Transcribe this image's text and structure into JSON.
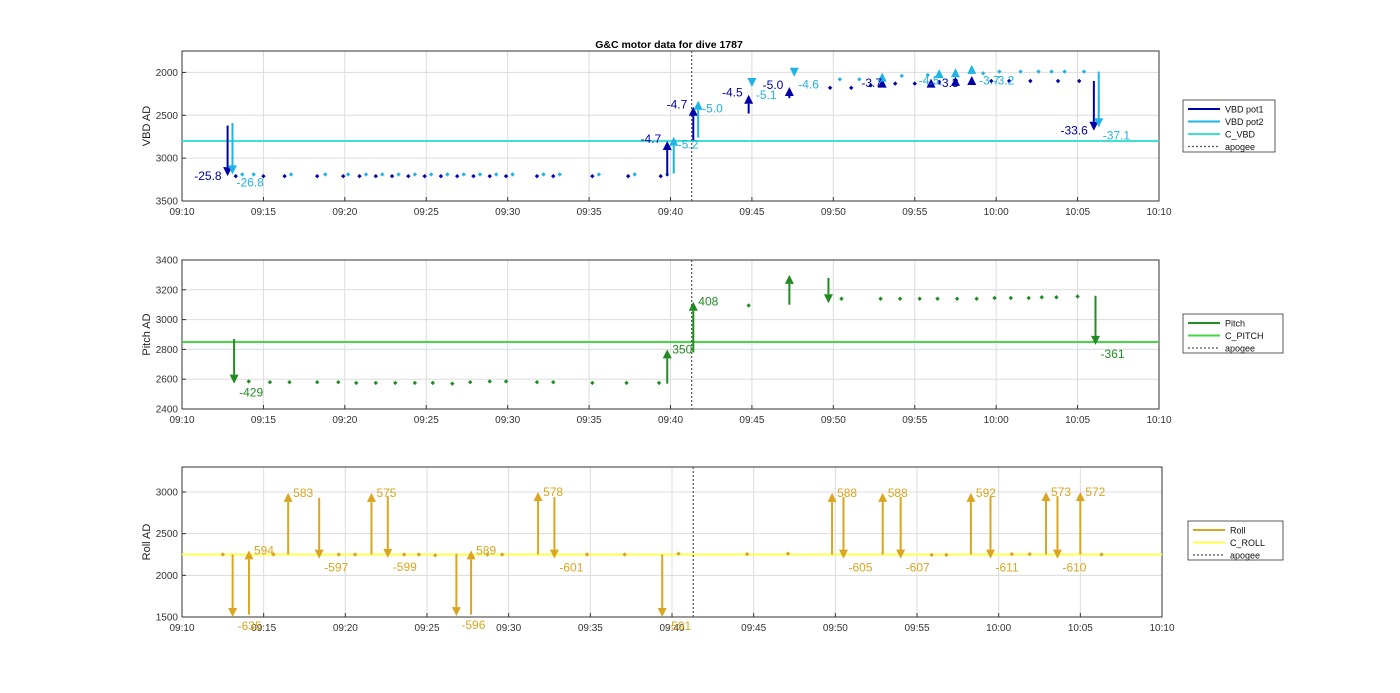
{
  "figure": {
    "title": "G&C motor data for dive 1787"
  },
  "colors": {
    "vbd1": "#0000a8",
    "vbd2": "#1fb4e6",
    "c_vbd": "#40e0d0",
    "pitch": "#228b22",
    "c_pitch": "#45d845",
    "roll": "#daa520",
    "c_roll": "#ffff4d",
    "apogee": "#555555",
    "grid": "#dcdcdc"
  },
  "chart_data": [
    {
      "type": "line",
      "panel": "vbd",
      "ylabel": "VBD AD",
      "xlabel": "",
      "x_ticks": [
        "09:10",
        "09:15",
        "09:20",
        "09:25",
        "09:30",
        "09:35",
        "09:40",
        "09:45",
        "09:50",
        "09:55",
        "10:00",
        "10:05",
        "10:10"
      ],
      "y_ticks": [
        "2000",
        "2500",
        "3000",
        "3500"
      ],
      "xlim": [
        "09:10",
        "10:10"
      ],
      "ylim": [
        3500,
        1750
      ],
      "y_reversed": true,
      "grid": true,
      "legend_position": "right",
      "legend": [
        "VBD pot1",
        "VBD pot2",
        "C_VBD",
        "apogee"
      ],
      "apogee_x": "09:41.3",
      "c_value": 2800,
      "pot1_points": [
        {
          "x": "09:13.3",
          "y": 3210
        },
        {
          "x": "09:15.0",
          "y": 3210
        },
        {
          "x": "09:16.3",
          "y": 3210
        },
        {
          "x": "09:18.3",
          "y": 3210
        },
        {
          "x": "09:19.9",
          "y": 3210
        },
        {
          "x": "09:20.9",
          "y": 3210
        },
        {
          "x": "09:21.9",
          "y": 3210
        },
        {
          "x": "09:22.9",
          "y": 3210
        },
        {
          "x": "09:23.9",
          "y": 3210
        },
        {
          "x": "09:24.9",
          "y": 3210
        },
        {
          "x": "09:25.9",
          "y": 3210
        },
        {
          "x": "09:26.9",
          "y": 3210
        },
        {
          "x": "09:27.9",
          "y": 3210
        },
        {
          "x": "09:28.9",
          "y": 3210
        },
        {
          "x": "09:29.9",
          "y": 3210
        },
        {
          "x": "09:31.8",
          "y": 3210
        },
        {
          "x": "09:32.8",
          "y": 3210
        },
        {
          "x": "09:35.2",
          "y": 3210
        },
        {
          "x": "09:37.4",
          "y": 3210
        },
        {
          "x": "09:39.4",
          "y": 3210
        },
        {
          "x": "09:49.8",
          "y": 2180
        },
        {
          "x": "09:51.1",
          "y": 2180
        },
        {
          "x": "09:52.3",
          "y": 2150
        },
        {
          "x": "09:53.8",
          "y": 2130
        },
        {
          "x": "09:55.0",
          "y": 2130
        },
        {
          "x": "09:56.5",
          "y": 2110
        },
        {
          "x": "09:59.7",
          "y": 2100
        },
        {
          "x": "10:00.8",
          "y": 2100
        },
        {
          "x": "10:02.1",
          "y": 2100
        },
        {
          "x": "10:03.8",
          "y": 2100
        },
        {
          "x": "10:05.1",
          "y": 2100
        }
      ],
      "pot2_points": [
        {
          "x": "09:13.7",
          "y": 3190
        },
        {
          "x": "09:14.4",
          "y": 3190
        },
        {
          "x": "09:16.7",
          "y": 3190
        },
        {
          "x": "09:18.8",
          "y": 3190
        },
        {
          "x": "09:20.2",
          "y": 3190
        },
        {
          "x": "09:21.3",
          "y": 3190
        },
        {
          "x": "09:22.3",
          "y": 3190
        },
        {
          "x": "09:23.3",
          "y": 3190
        },
        {
          "x": "09:24.3",
          "y": 3190
        },
        {
          "x": "09:25.3",
          "y": 3190
        },
        {
          "x": "09:26.3",
          "y": 3190
        },
        {
          "x": "09:27.3",
          "y": 3190
        },
        {
          "x": "09:28.3",
          "y": 3190
        },
        {
          "x": "09:29.3",
          "y": 3190
        },
        {
          "x": "09:30.3",
          "y": 3190
        },
        {
          "x": "09:32.2",
          "y": 3190
        },
        {
          "x": "09:33.2",
          "y": 3190
        },
        {
          "x": "09:35.6",
          "y": 3190
        },
        {
          "x": "09:37.8",
          "y": 3190
        },
        {
          "x": "09:39.8",
          "y": 3190
        },
        {
          "x": "09:50.4",
          "y": 2080
        },
        {
          "x": "09:51.6",
          "y": 2080
        },
        {
          "x": "09:54.2",
          "y": 2040
        },
        {
          "x": "09:55.8",
          "y": 2030
        },
        {
          "x": "09:59.2",
          "y": 2010
        },
        {
          "x": "10:00.2",
          "y": 1990
        },
        {
          "x": "10:01.5",
          "y": 1990
        },
        {
          "x": "10:02.6",
          "y": 1990
        },
        {
          "x": "10:03.4",
          "y": 1990
        },
        {
          "x": "10:04.2",
          "y": 1990
        },
        {
          "x": "10:05.4",
          "y": 1990
        }
      ],
      "pot1_triangles": [
        {
          "x": "09:53.0",
          "y": 2130
        },
        {
          "x": "09:56.0",
          "y": 2130
        },
        {
          "x": "09:57.5",
          "y": 2110
        },
        {
          "x": "09:58.5",
          "y": 2100
        }
      ],
      "pot2_triangles": [
        {
          "x": "09:53.0",
          "y": 2060
        },
        {
          "x": "09:56.5",
          "y": 2020
        },
        {
          "x": "09:57.5",
          "y": 2010
        },
        {
          "x": "09:58.5",
          "y": 1970
        }
      ],
      "pot1_moves": [
        {
          "x": "09:12.8",
          "from": 2620,
          "to": 3210,
          "label": "-25.8"
        },
        {
          "x": "09:39.8",
          "from": 3210,
          "to": 2800,
          "label": "-4.7"
        },
        {
          "x": "09:41.4",
          "from": 2790,
          "to": 2400,
          "label": "-4.7"
        },
        {
          "x": "09:44.8",
          "from": 2480,
          "to": 2260,
          "label": "-4.5"
        },
        {
          "x": "09:47.3",
          "from": 2300,
          "to": 2170,
          "label": "-5.0"
        },
        {
          "x": "09:51.6",
          "from": null,
          "to": null,
          "label": "-3.7"
        },
        {
          "x": "09:56.3",
          "from": null,
          "to": null,
          "label": "-3.3"
        },
        {
          "x": "10:06.0",
          "from": 2100,
          "to": 2680,
          "label": "-33.6"
        }
      ],
      "pot2_moves": [
        {
          "x": "09:13.1",
          "from": 2590,
          "to": 3190,
          "label": "-26.8"
        },
        {
          "x": "09:40.2",
          "from": 3180,
          "to": 2750,
          "label": "-5.2"
        },
        {
          "x": "09:41.7",
          "from": 2760,
          "to": 2330,
          "label": "-5.0"
        },
        {
          "x": "09:45.0",
          "from": null,
          "to": 2170,
          "label": "-5.1"
        },
        {
          "x": "09:47.6",
          "from": null,
          "to": 2050,
          "label": "-4.6"
        },
        {
          "x": "09:55.0",
          "from": null,
          "to": null,
          "label": "-4.5"
        },
        {
          "x": "09:58.7",
          "from": null,
          "to": null,
          "label": "-3.7"
        },
        {
          "x": "09:59.6",
          "from": null,
          "to": null,
          "label": "-3.2"
        },
        {
          "x": "10:06.3",
          "from": 1990,
          "to": 2640,
          "label": "-37.1"
        }
      ]
    },
    {
      "type": "line",
      "panel": "pitch",
      "ylabel": "Pitch AD",
      "xlabel": "",
      "x_ticks": [
        "09:10",
        "09:15",
        "09:20",
        "09:25",
        "09:30",
        "09:35",
        "09:40",
        "09:45",
        "09:50",
        "09:55",
        "10:00",
        "10:05",
        "10:10"
      ],
      "y_ticks": [
        "2400",
        "2600",
        "2800",
        "3000",
        "3200",
        "3400"
      ],
      "xlim": [
        "09:10",
        "10:10"
      ],
      "ylim": [
        2400,
        3400
      ],
      "grid": true,
      "legend_position": "right",
      "legend": [
        "Pitch",
        "C_PITCH",
        "apogee"
      ],
      "apogee_x": "09:41.3",
      "c_value": 2850,
      "points": [
        {
          "x": "09:14.1",
          "y": 2585
        },
        {
          "x": "09:15.4",
          "y": 2580
        },
        {
          "x": "09:16.6",
          "y": 2580
        },
        {
          "x": "09:18.3",
          "y": 2580
        },
        {
          "x": "09:19.6",
          "y": 2580
        },
        {
          "x": "09:20.7",
          "y": 2575
        },
        {
          "x": "09:21.9",
          "y": 2575
        },
        {
          "x": "09:23.1",
          "y": 2575
        },
        {
          "x": "09:24.3",
          "y": 2575
        },
        {
          "x": "09:25.4",
          "y": 2575
        },
        {
          "x": "09:26.6",
          "y": 2570
        },
        {
          "x": "09:27.7",
          "y": 2580
        },
        {
          "x": "09:28.9",
          "y": 2585
        },
        {
          "x": "09:29.9",
          "y": 2585
        },
        {
          "x": "09:31.8",
          "y": 2580
        },
        {
          "x": "09:32.8",
          "y": 2580
        },
        {
          "x": "09:35.2",
          "y": 2575
        },
        {
          "x": "09:37.3",
          "y": 2575
        },
        {
          "x": "09:39.3",
          "y": 2575
        },
        {
          "x": "09:44.8",
          "y": 3095
        },
        {
          "x": "09:50.5",
          "y": 3140
        },
        {
          "x": "09:52.9",
          "y": 3140
        },
        {
          "x": "09:54.1",
          "y": 3140
        },
        {
          "x": "09:55.3",
          "y": 3140
        },
        {
          "x": "09:56.4",
          "y": 3140
        },
        {
          "x": "09:57.6",
          "y": 3140
        },
        {
          "x": "09:58.8",
          "y": 3140
        },
        {
          "x": "09:59.9",
          "y": 3145
        },
        {
          "x": "10:00.9",
          "y": 3145
        },
        {
          "x": "10:02.0",
          "y": 3145
        },
        {
          "x": "10:02.8",
          "y": 3150
        },
        {
          "x": "10:03.7",
          "y": 3150
        },
        {
          "x": "10:05.0",
          "y": 3155
        }
      ],
      "moves": [
        {
          "x": "09:13.2",
          "from": 2870,
          "to": 2570,
          "label": "-429"
        },
        {
          "x": "09:39.8",
          "from": 2570,
          "to": 2800,
          "label": "350"
        },
        {
          "x": "09:41.4",
          "from": 2780,
          "to": 3120,
          "label": "408"
        },
        {
          "x": "09:47.3",
          "from": 3100,
          "to": 3300,
          "label": ""
        },
        {
          "x": "09:49.7",
          "from": 3280,
          "to": 3110,
          "label": ""
        },
        {
          "x": "10:06.1",
          "from": 3160,
          "to": 2830,
          "label": "-361"
        }
      ]
    },
    {
      "type": "line",
      "panel": "roll",
      "ylabel": "Roll AD",
      "xlabel": "",
      "x_ticks": [
        "09:10",
        "09:15",
        "09:20",
        "09:25",
        "09:30",
        "09:35",
        "09:40",
        "09:45",
        "09:50",
        "09:55",
        "10:00",
        "10:05",
        "10:10"
      ],
      "y_ticks": [
        "1500",
        "2000",
        "2500",
        "3000"
      ],
      "xlim": [
        "09:10",
        "10:10"
      ],
      "ylim": [
        1500,
        3300
      ],
      "grid": true,
      "legend_position": "right",
      "legend": [
        "Roll",
        "C_ROLL",
        "apogee"
      ],
      "apogee_x": "09:41.3",
      "c_value": 2250,
      "points": [
        {
          "x": "09:12.5",
          "y": 2250
        },
        {
          "x": "09:15.6",
          "y": 2250
        },
        {
          "x": "09:19.6",
          "y": 2250
        },
        {
          "x": "09:20.6",
          "y": 2250
        },
        {
          "x": "09:23.6",
          "y": 2250
        },
        {
          "x": "09:24.5",
          "y": 2250
        },
        {
          "x": "09:25.5",
          "y": 2240
        },
        {
          "x": "09:28.7",
          "y": 2250
        },
        {
          "x": "09:29.6",
          "y": 2250
        },
        {
          "x": "09:34.8",
          "y": 2250
        },
        {
          "x": "09:37.1",
          "y": 2250
        },
        {
          "x": "09:40.4",
          "y": 2260
        },
        {
          "x": "09:44.6",
          "y": 2255
        },
        {
          "x": "09:47.1",
          "y": 2260
        },
        {
          "x": "09:55.9",
          "y": 2245
        },
        {
          "x": "09:56.8",
          "y": 2245
        },
        {
          "x": "10:00.8",
          "y": 2255
        },
        {
          "x": "10:01.9",
          "y": 2255
        },
        {
          "x": "10:06.3",
          "y": 2250
        }
      ],
      "moves": [
        {
          "x": "09:13.1",
          "from": 2250,
          "to": 1500,
          "label": "-635"
        },
        {
          "x": "09:14.1",
          "from": 1530,
          "to": 2300,
          "label": "594"
        },
        {
          "x": "09:16.5",
          "from": 2250,
          "to": 2990,
          "label": "583"
        },
        {
          "x": "09:18.4",
          "from": 2930,
          "to": 2200,
          "label": "-597"
        },
        {
          "x": "09:21.6",
          "from": 2250,
          "to": 2990,
          "label": "575"
        },
        {
          "x": "09:22.6",
          "from": 2950,
          "to": 2210,
          "label": "-599"
        },
        {
          "x": "09:26.8",
          "from": 2260,
          "to": 1510,
          "label": "-596"
        },
        {
          "x": "09:27.7",
          "from": 1530,
          "to": 2300,
          "label": "589"
        },
        {
          "x": "09:31.8",
          "from": 2250,
          "to": 3000,
          "label": "578"
        },
        {
          "x": "09:32.8",
          "from": 2940,
          "to": 2200,
          "label": "-601"
        },
        {
          "x": "09:39.4",
          "from": 2250,
          "to": 1500,
          "label": "-591"
        },
        {
          "x": "09:49.8",
          "from": 2250,
          "to": 2990,
          "label": "588"
        },
        {
          "x": "09:50.5",
          "from": 2940,
          "to": 2200,
          "label": "-605"
        },
        {
          "x": "09:52.9",
          "from": 2250,
          "to": 2990,
          "label": "588"
        },
        {
          "x": "09:54.0",
          "from": 2940,
          "to": 2200,
          "label": "-607"
        },
        {
          "x": "09:58.3",
          "from": 2250,
          "to": 2990,
          "label": "592"
        },
        {
          "x": "09:59.5",
          "from": 2940,
          "to": 2200,
          "label": "-611"
        },
        {
          "x": "10:02.9",
          "from": 2250,
          "to": 3000,
          "label": "573"
        },
        {
          "x": "10:03.6",
          "from": 2950,
          "to": 2200,
          "label": "-610"
        },
        {
          "x": "10:05.0",
          "from": 2250,
          "to": 3000,
          "label": "572"
        }
      ]
    }
  ]
}
